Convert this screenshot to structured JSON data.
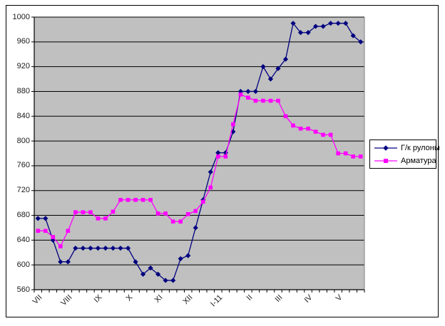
{
  "window": {
    "background": "#FFFFFF",
    "plot_background": "#C0C0C0",
    "frame_border": "#000000"
  },
  "chart_data": {
    "type": "line",
    "title": "",
    "xlabel": "",
    "ylabel": "",
    "grid": true,
    "legend_position": "right",
    "plot_bg": "#C0C0C0",
    "ylim": [
      560,
      1000
    ],
    "y_ticks": [
      560,
      600,
      640,
      680,
      720,
      760,
      800,
      840,
      880,
      920,
      960,
      1000
    ],
    "x_tick_labels": [
      "VII",
      "VIII",
      "IX",
      "X",
      "XI",
      "XII",
      "I-11",
      "II",
      "III",
      "IV",
      "V"
    ],
    "x_label_every": 4,
    "n_points": 44,
    "series": [
      {
        "name": "Г/к рулоны",
        "color": "#000080",
        "marker": "diamond",
        "values": [
          675,
          675,
          640,
          605,
          605,
          627,
          627,
          627,
          627,
          627,
          627,
          627,
          627,
          605,
          585,
          595,
          585,
          575,
          575,
          610,
          615,
          660,
          705,
          750,
          781,
          781,
          815,
          880,
          880,
          880,
          920,
          900,
          917,
          932,
          990,
          975,
          975,
          985,
          985,
          990,
          990,
          990,
          970,
          960
        ]
      },
      {
        "name": "Арматура",
        "color": "#FF00FF",
        "marker": "square",
        "values": [
          655,
          655,
          645,
          630,
          655,
          685,
          685,
          685,
          675,
          675,
          686,
          705,
          705,
          705,
          705,
          705,
          683,
          683,
          670,
          670,
          682,
          687,
          702,
          725,
          775,
          775,
          827,
          875,
          870,
          865,
          865,
          865,
          865,
          840,
          825,
          820,
          820,
          815,
          810,
          810,
          780,
          780,
          775,
          775
        ]
      }
    ]
  }
}
